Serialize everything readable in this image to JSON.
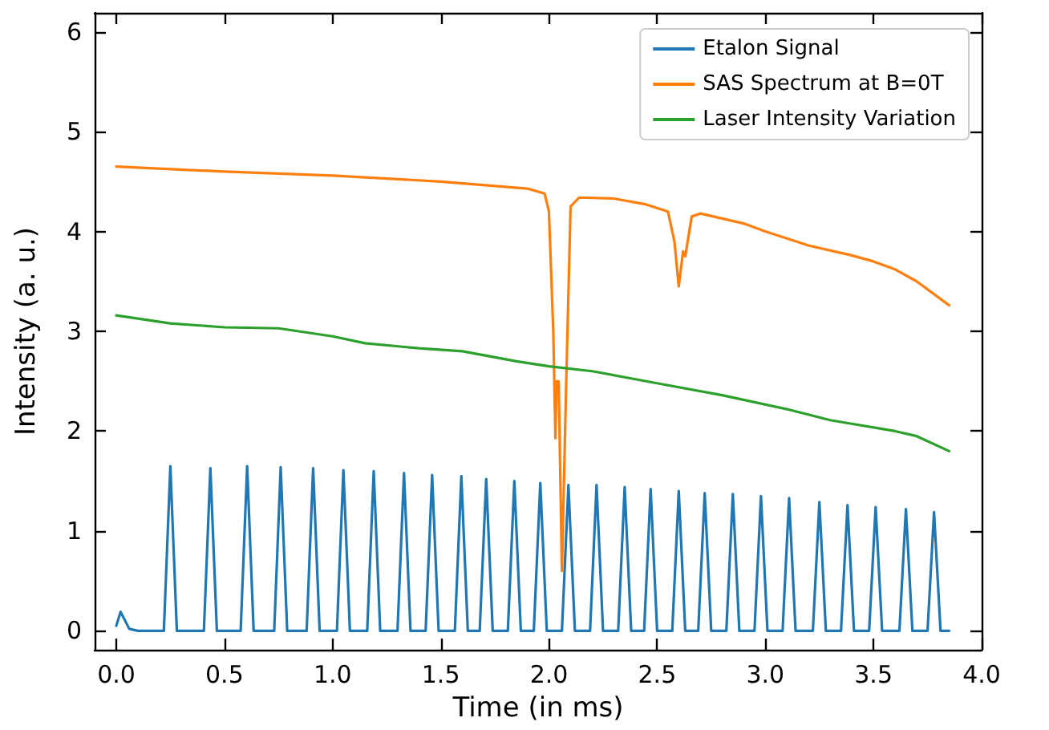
{
  "chart_data": {
    "type": "line",
    "xlabel": "Time (in ms)",
    "ylabel": "Intensity (a. u.)",
    "xlim": [
      -0.1,
      4.0
    ],
    "ylim": [
      -0.19,
      6.19
    ],
    "xticks": [
      {
        "value": 0,
        "label": "0.0"
      },
      {
        "value": 0.5,
        "label": "0.5"
      },
      {
        "value": 1,
        "label": "1.0"
      },
      {
        "value": 1.5,
        "label": "1.5"
      },
      {
        "value": 2,
        "label": "2.0"
      },
      {
        "value": 2.5,
        "label": "2.5"
      },
      {
        "value": 3,
        "label": "3.0"
      },
      {
        "value": 3.5,
        "label": "3.5"
      },
      {
        "value": 4,
        "label": "4.0"
      }
    ],
    "yticks": [
      0,
      1,
      2,
      3,
      4,
      5,
      6
    ],
    "grid": false,
    "legend": "top right",
    "marker": "none",
    "line_style": "solid",
    "series": [
      {
        "name": "Etalon Signal",
        "color": "#1f77b4",
        "x": [
          0,
          0.02,
          0.06,
          0.1,
          0.22,
          0.25,
          0.28,
          0.405,
          0.435,
          0.465,
          0.575,
          0.605,
          0.635,
          0.73,
          0.76,
          0.79,
          0.88,
          0.91,
          0.94,
          1.02,
          1.05,
          1.08,
          1.16,
          1.19,
          1.22,
          1.3,
          1.33,
          1.36,
          1.43,
          1.46,
          1.49,
          1.565,
          1.595,
          1.625,
          1.68,
          1.71,
          1.74,
          1.81,
          1.84,
          1.87,
          1.93,
          1.96,
          1.99,
          2.06,
          2.09,
          2.12,
          2.19,
          2.22,
          2.25,
          2.32,
          2.35,
          2.38,
          2.44,
          2.47,
          2.5,
          2.57,
          2.6,
          2.63,
          2.69,
          2.72,
          2.75,
          2.82,
          2.85,
          2.88,
          2.95,
          2.98,
          3.01,
          3.08,
          3.11,
          3.14,
          3.22,
          3.25,
          3.28,
          3.35,
          3.38,
          3.41,
          3.48,
          3.51,
          3.54,
          3.62,
          3.65,
          3.68,
          3.75,
          3.78,
          3.81,
          3.85
        ],
        "values": [
          0.05,
          0.19,
          0.02,
          0,
          0,
          1.65,
          0,
          0,
          1.63,
          0,
          0,
          1.65,
          0,
          0,
          1.64,
          0,
          0,
          1.63,
          0,
          0,
          1.61,
          0,
          0,
          1.6,
          0,
          0,
          1.58,
          0,
          0,
          1.56,
          0,
          0,
          1.55,
          0,
          0,
          1.52,
          0,
          0,
          1.5,
          0,
          0,
          1.48,
          0,
          0,
          1.46,
          0,
          0,
          1.46,
          0,
          0,
          1.44,
          0,
          0,
          1.42,
          0,
          0,
          1.4,
          0,
          0,
          1.38,
          0,
          0,
          1.37,
          0,
          0,
          1.35,
          0,
          0,
          1.33,
          0,
          0,
          1.29,
          0,
          0,
          1.26,
          0,
          0,
          1.24,
          0,
          0,
          1.22,
          0,
          0,
          1.19,
          0,
          0
        ]
      },
      {
        "name": "SAS Spectrum at B=0T",
        "color": "#ff7f0e",
        "x": [
          0,
          0.5,
          1.0,
          1.5,
          1.9,
          1.98,
          2.0,
          2.02,
          2.03,
          2.035,
          2.045,
          2.06,
          2.08,
          2.1,
          2.14,
          2.3,
          2.45,
          2.55,
          2.58,
          2.6,
          2.62,
          2.63,
          2.66,
          2.7,
          2.9,
          3.0,
          3.2,
          3.4,
          3.5,
          3.6,
          3.7,
          3.85
        ],
        "values": [
          4.65,
          4.6,
          4.56,
          4.5,
          4.43,
          4.38,
          4.2,
          3.0,
          1.93,
          2.5,
          2.5,
          0.6,
          2.5,
          4.25,
          4.34,
          4.33,
          4.27,
          4.2,
          3.9,
          3.45,
          3.8,
          3.75,
          4.15,
          4.18,
          4.08,
          4.0,
          3.86,
          3.76,
          3.7,
          3.62,
          3.5,
          3.26
        ]
      },
      {
        "name": "Laser Intensity Variation",
        "color": "#2ca02c",
        "x": [
          0,
          0.25,
          0.5,
          0.75,
          1.0,
          1.15,
          1.4,
          1.6,
          1.85,
          2.0,
          2.2,
          2.5,
          2.8,
          3.1,
          3.3,
          3.6,
          3.7,
          3.85
        ],
        "values": [
          3.16,
          3.08,
          3.04,
          3.03,
          2.95,
          2.88,
          2.83,
          2.8,
          2.7,
          2.65,
          2.6,
          2.48,
          2.36,
          2.22,
          2.11,
          2.0,
          1.95,
          1.8
        ]
      }
    ]
  }
}
